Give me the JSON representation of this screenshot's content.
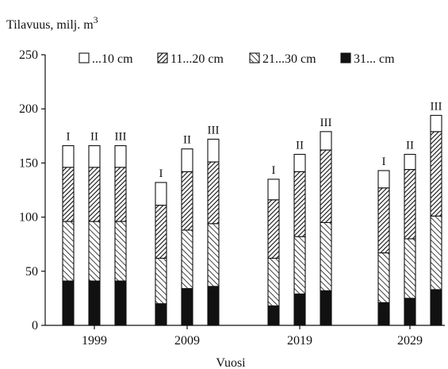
{
  "chart_data": {
    "type": "bar",
    "stacked": true,
    "ylabel": "Tilavuus, milj. m",
    "ylabel_superscript": "3",
    "xlabel": "Vuosi",
    "ylim": [
      0,
      250
    ],
    "yticks": [
      0,
      50,
      100,
      150,
      200,
      250
    ],
    "categories": [
      "1999",
      "2009",
      "2019",
      "2029"
    ],
    "bars_per_category": [
      "I",
      "II",
      "III"
    ],
    "legend_position": "top",
    "series": [
      {
        "name": "31... cm",
        "pattern": "solid-black",
        "values": [
          [
            41,
            41,
            41
          ],
          [
            20,
            34,
            36
          ],
          [
            18,
            29,
            32
          ],
          [
            21,
            25,
            33
          ]
        ]
      },
      {
        "name": "21...30 cm",
        "pattern": "light-diagonal-hatch",
        "values": [
          [
            55,
            55,
            55
          ],
          [
            42,
            54,
            58
          ],
          [
            44,
            53,
            63
          ],
          [
            46,
            55,
            68
          ]
        ]
      },
      {
        "name": "11...20 cm",
        "pattern": "dense-diagonal-hatch",
        "values": [
          [
            50,
            50,
            50
          ],
          [
            49,
            54,
            57
          ],
          [
            54,
            60,
            67
          ],
          [
            60,
            64,
            78
          ]
        ]
      },
      {
        "name": "...10 cm",
        "pattern": "white",
        "values": [
          [
            20,
            20,
            20
          ],
          [
            21,
            21,
            21
          ],
          [
            19,
            16,
            17
          ],
          [
            16,
            14,
            15
          ]
        ]
      }
    ],
    "legend_order": [
      "...10 cm",
      "11...20 cm",
      "21...30 cm",
      "31... cm"
    ],
    "colors": {
      "solid": "#111111",
      "outline": "#111111",
      "background": "#ffffff"
    }
  }
}
